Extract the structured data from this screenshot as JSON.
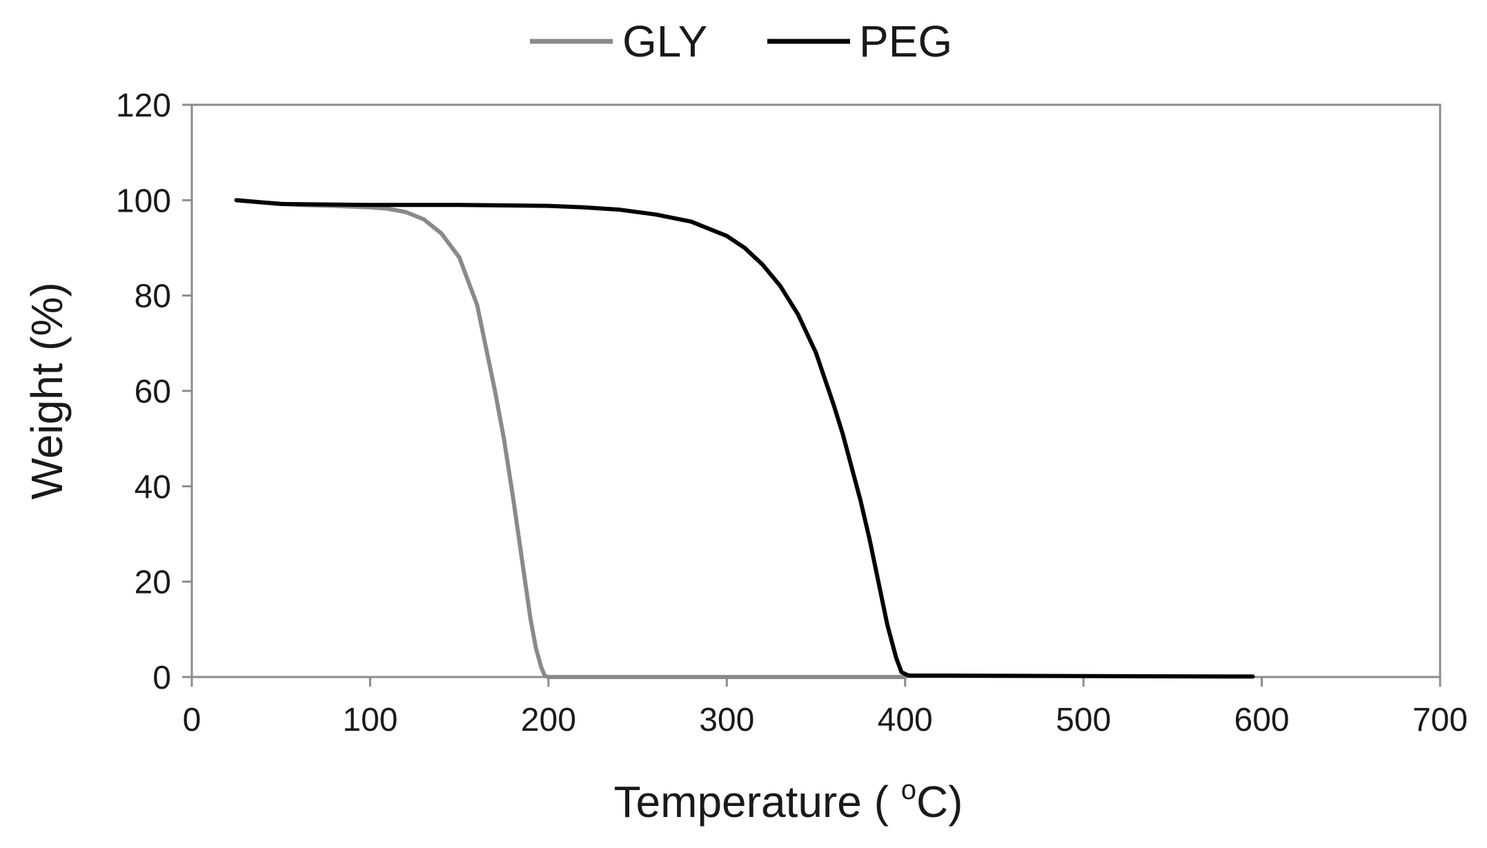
{
  "chart_data": {
    "type": "line",
    "title": "",
    "xlabel": "Temperature ( ",
    "xlabel_superscript": "o",
    "xlabel_suffix": "C)",
    "ylabel": "Weight (%)",
    "xlim": [
      0,
      700
    ],
    "ylim": [
      0,
      120
    ],
    "xticks": [
      0,
      100,
      200,
      300,
      400,
      500,
      600,
      700
    ],
    "yticks": [
      0,
      20,
      40,
      60,
      80,
      100,
      120
    ],
    "xtick_labels": [
      "0",
      "100",
      "200",
      "300",
      "400",
      "500",
      "600",
      "700"
    ],
    "ytick_labels": [
      "0",
      "20",
      "40",
      "60",
      "80",
      "100",
      "120"
    ],
    "grid": false,
    "legend_position": "top-center",
    "series": [
      {
        "name": "GLY",
        "color": "#8a8a8a",
        "x": [
          25,
          40,
          60,
          80,
          100,
          110,
          120,
          130,
          140,
          150,
          160,
          170,
          175,
          180,
          185,
          190,
          193,
          196,
          198,
          200,
          250,
          300,
          350,
          400
        ],
        "y": [
          100,
          99.5,
          99,
          98.8,
          98.5,
          98.2,
          97.5,
          96,
          93,
          88,
          78,
          60,
          50,
          38,
          25,
          12,
          6,
          2,
          0.2,
          0,
          0,
          0,
          0,
          0
        ]
      },
      {
        "name": "PEG",
        "color": "#000000",
        "x": [
          25,
          50,
          100,
          150,
          200,
          220,
          240,
          260,
          280,
          300,
          310,
          320,
          330,
          340,
          350,
          360,
          365,
          370,
          375,
          380,
          385,
          390,
          395,
          398,
          402,
          420,
          500,
          595
        ],
        "y": [
          100,
          99.2,
          99,
          99,
          98.8,
          98.5,
          98,
          97,
          95.5,
          92.5,
          90,
          86.5,
          82,
          76,
          68,
          57,
          51,
          44,
          37,
          29,
          20,
          11,
          4,
          1,
          0.3,
          0.3,
          0.2,
          0.1
        ]
      }
    ]
  }
}
